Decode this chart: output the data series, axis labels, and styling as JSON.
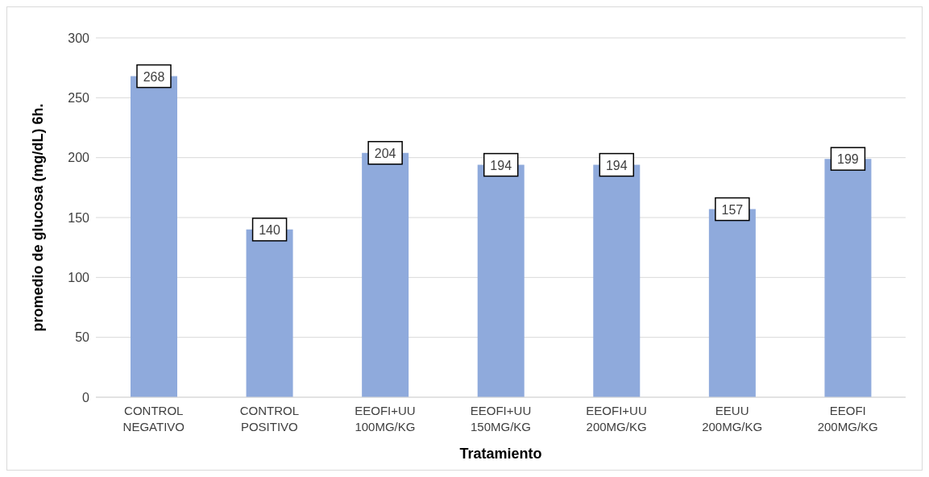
{
  "chart_data": {
    "type": "bar",
    "xlabel": "Tratamiento",
    "ylabel": "promedio de glucosa (mg/dL) 6h.",
    "categories": [
      "CONTROL NEGATIVO",
      "CONTROL POSITIVO",
      "EEOFI+UU 100MG/KG",
      "EEOFI+UU 150MG/KG",
      "EEOFI+UU 200MG/KG",
      "EEUU 200MG/KG",
      "EEOFI 200MG/KG"
    ],
    "values": [
      268,
      140,
      204,
      194,
      194,
      157,
      199
    ],
    "color": "#8faadc",
    "ylim": [
      0,
      300
    ],
    "yticks": [
      0,
      50,
      100,
      150,
      200,
      250,
      300
    ],
    "grid": "y",
    "data_labels": true
  }
}
